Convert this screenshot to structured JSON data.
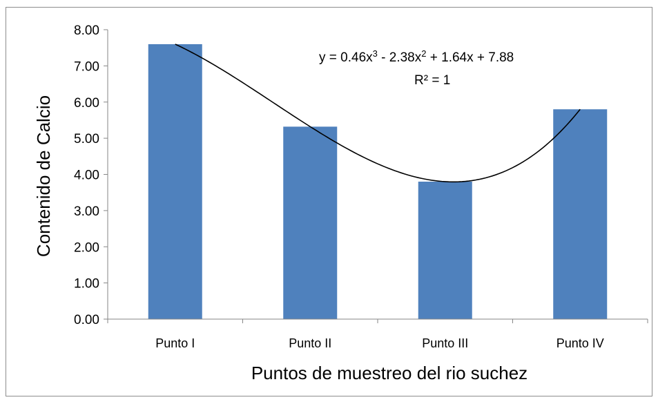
{
  "chart_data": {
    "type": "bar",
    "title": "",
    "xlabel": "Puntos de muestreo del rio suchez",
    "ylabel": "Contenido de Calcio",
    "categories": [
      "Punto I",
      "Punto II",
      "Punto III",
      "Punto IV"
    ],
    "values": [
      7.6,
      5.32,
      3.8,
      5.8
    ],
    "ylim": [
      0,
      8
    ],
    "yticks": [
      "0.00",
      "1.00",
      "2.00",
      "3.00",
      "4.00",
      "5.00",
      "6.00",
      "7.00",
      "8.00"
    ],
    "grid": false,
    "legend": "none",
    "bar_color": "#4f81bd",
    "trendline": {
      "type": "polynomial",
      "order": 3,
      "coefficients": [
        0.46,
        -2.38,
        1.64,
        7.88
      ],
      "equation_prefix": "y = 0.46x",
      "equation_mid1": " - 2.38x",
      "equation_suffix": " + 1.64x + 7.88",
      "equation_sup3": "3",
      "equation_sup2": "2",
      "r_squared_label": "R² = 1",
      "color": "#000000"
    }
  }
}
